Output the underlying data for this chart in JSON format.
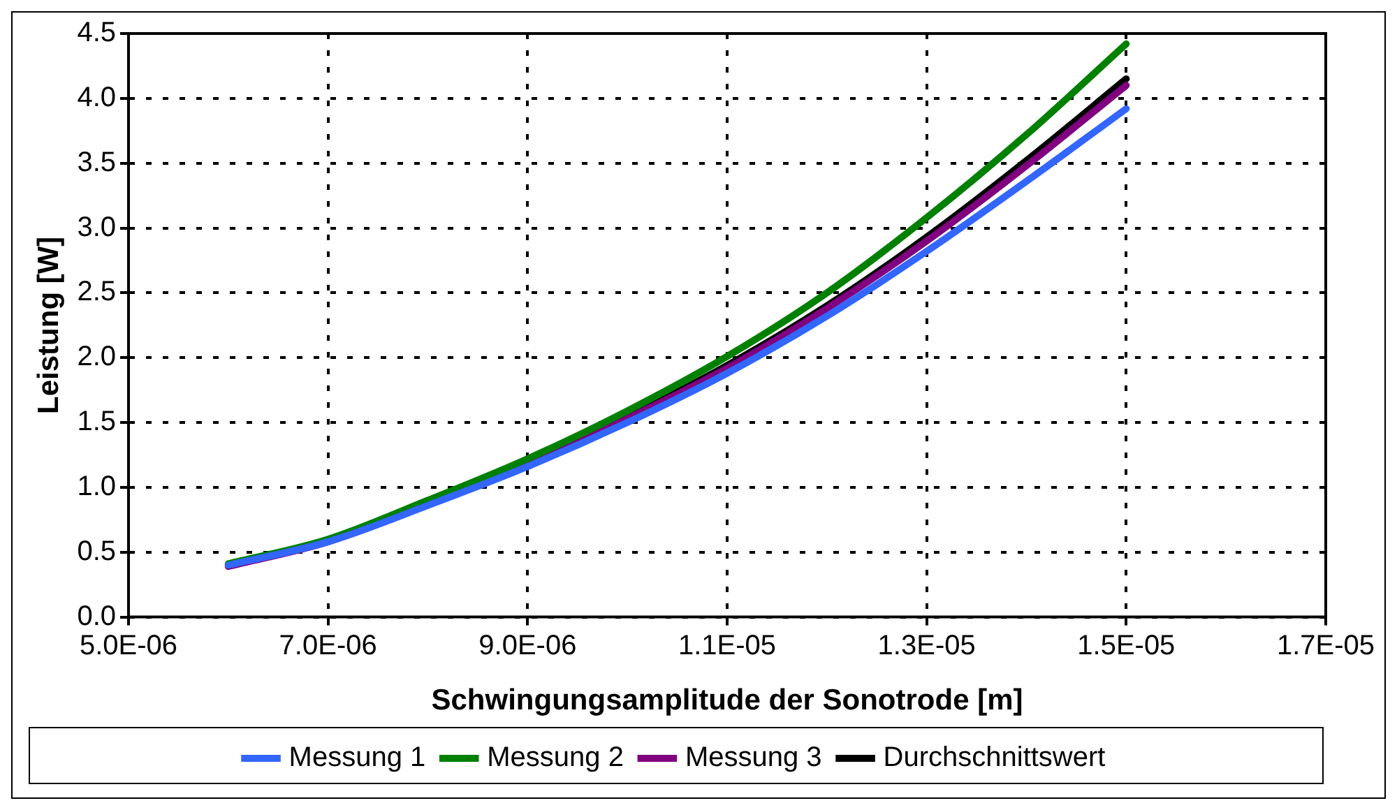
{
  "chart_data": {
    "type": "line",
    "xlabel": "Schwingungsamplitude der Sonotrode [m]",
    "ylabel": "Leistung [W]",
    "x": [
      6e-06,
      7e-06,
      8e-06,
      9e-06,
      1e-05,
      1.1e-05,
      1.2e-05,
      1.3e-05,
      1.4e-05,
      1.5e-05
    ],
    "series": [
      {
        "name": "Messung 1",
        "color": "#3366ff",
        "values": [
          0.4,
          0.58,
          0.86,
          1.16,
          1.5,
          1.88,
          2.32,
          2.82,
          3.36,
          3.92
        ]
      },
      {
        "name": "Messung 2",
        "color": "#008000",
        "values": [
          0.41,
          0.6,
          0.9,
          1.22,
          1.59,
          2.01,
          2.5,
          3.08,
          3.72,
          4.42
        ]
      },
      {
        "name": "Messung 3",
        "color": "#800080",
        "values": [
          0.39,
          0.58,
          0.87,
          1.18,
          1.53,
          1.92,
          2.38,
          2.9,
          3.48,
          4.1
        ]
      },
      {
        "name": "Durchschnittswert",
        "color": "#000000",
        "values": [
          0.4,
          0.59,
          0.88,
          1.19,
          1.54,
          1.94,
          2.4,
          2.93,
          3.52,
          4.15
        ]
      }
    ],
    "xlim": [
      5e-06,
      1.7e-05
    ],
    "xticks": [
      {
        "value": 5e-06,
        "label": "5.0E-06"
      },
      {
        "value": 7e-06,
        "label": "7.0E-06"
      },
      {
        "value": 9e-06,
        "label": "9.0E-06"
      },
      {
        "value": 1.1e-05,
        "label": "1.1E-05"
      },
      {
        "value": 1.3e-05,
        "label": "1.3E-05"
      },
      {
        "value": 1.5e-05,
        "label": "1.5E-05"
      },
      {
        "value": 1.7e-05,
        "label": "1.7E-05"
      }
    ],
    "ylim": [
      0,
      4.5
    ],
    "yticks": [
      {
        "value": 0,
        "label": "0.0"
      },
      {
        "value": 0.5,
        "label": "0.5"
      },
      {
        "value": 1,
        "label": "1.0"
      },
      {
        "value": 1.5,
        "label": "1.5"
      },
      {
        "value": 2,
        "label": "2.0"
      },
      {
        "value": 2.5,
        "label": "2.5"
      },
      {
        "value": 3,
        "label": "3.0"
      },
      {
        "value": 3.5,
        "label": "3.5"
      },
      {
        "value": 4,
        "label": "4.0"
      },
      {
        "value": 4.5,
        "label": "4.5"
      }
    ],
    "grid": true,
    "legend": "bottom",
    "marker": "none",
    "line_style": "solid"
  }
}
